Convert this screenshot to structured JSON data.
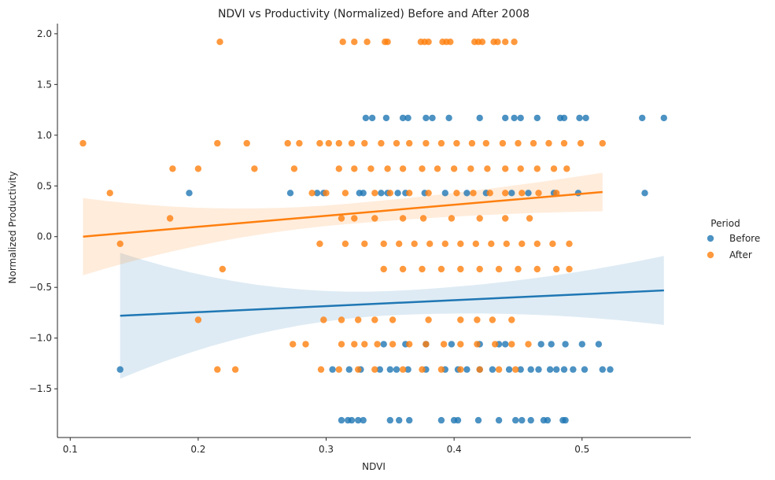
{
  "chart_data": {
    "type": "scatter",
    "title": "NDVI vs Productivity (Normalized) Before and After 2008",
    "xlabel": "NDVI",
    "ylabel": "Normalized Productivity",
    "xlim": [
      0.09,
      0.585
    ],
    "ylim": [
      -1.98,
      2.1
    ],
    "xticks": [
      0.1,
      0.2,
      0.3,
      0.4,
      0.5
    ],
    "xtick_labels": [
      "0.1",
      "0.2",
      "0.3",
      "0.4",
      "0.5"
    ],
    "yticks": [
      -1.5,
      -1.0,
      -0.5,
      0.0,
      0.5,
      1.0,
      1.5,
      2.0
    ],
    "ytick_labels": [
      "−1.5",
      "−1.0",
      "−0.5",
      "0.0",
      "0.5",
      "1.0",
      "1.5",
      "2.0"
    ],
    "grid": false,
    "legend": {
      "title": "Period",
      "placement": "right"
    },
    "series": [
      {
        "name": "Before",
        "color": "#1f77b4",
        "points": [
          [
            0.139,
            -1.31
          ],
          [
            0.193,
            0.43
          ],
          [
            0.272,
            0.43
          ],
          [
            0.293,
            0.43
          ],
          [
            0.298,
            0.43
          ],
          [
            0.326,
            0.43
          ],
          [
            0.329,
            0.43
          ],
          [
            0.343,
            0.43
          ],
          [
            0.348,
            0.43
          ],
          [
            0.356,
            0.43
          ],
          [
            0.362,
            0.43
          ],
          [
            0.377,
            0.43
          ],
          [
            0.393,
            0.43
          ],
          [
            0.41,
            0.43
          ],
          [
            0.425,
            0.43
          ],
          [
            0.445,
            0.43
          ],
          [
            0.458,
            0.43
          ],
          [
            0.478,
            0.43
          ],
          [
            0.497,
            0.43
          ],
          [
            0.549,
            0.43
          ],
          [
            0.331,
            1.17
          ],
          [
            0.336,
            1.17
          ],
          [
            0.347,
            1.17
          ],
          [
            0.36,
            1.17
          ],
          [
            0.364,
            1.17
          ],
          [
            0.378,
            1.17
          ],
          [
            0.383,
            1.17
          ],
          [
            0.396,
            1.17
          ],
          [
            0.42,
            1.17
          ],
          [
            0.44,
            1.17
          ],
          [
            0.447,
            1.17
          ],
          [
            0.452,
            1.17
          ],
          [
            0.465,
            1.17
          ],
          [
            0.483,
            1.17
          ],
          [
            0.486,
            1.17
          ],
          [
            0.498,
            1.17
          ],
          [
            0.503,
            1.17
          ],
          [
            0.547,
            1.17
          ],
          [
            0.564,
            1.17
          ],
          [
            0.345,
            -1.06
          ],
          [
            0.362,
            -1.06
          ],
          [
            0.378,
            -1.06
          ],
          [
            0.398,
            -1.06
          ],
          [
            0.42,
            -1.06
          ],
          [
            0.435,
            -1.06
          ],
          [
            0.44,
            -1.06
          ],
          [
            0.468,
            -1.06
          ],
          [
            0.476,
            -1.06
          ],
          [
            0.487,
            -1.06
          ],
          [
            0.5,
            -1.06
          ],
          [
            0.513,
            -1.06
          ],
          [
            0.305,
            -1.31
          ],
          [
            0.318,
            -1.31
          ],
          [
            0.327,
            -1.31
          ],
          [
            0.342,
            -1.31
          ],
          [
            0.35,
            -1.31
          ],
          [
            0.355,
            -1.31
          ],
          [
            0.364,
            -1.31
          ],
          [
            0.378,
            -1.31
          ],
          [
            0.393,
            -1.31
          ],
          [
            0.403,
            -1.31
          ],
          [
            0.41,
            -1.31
          ],
          [
            0.42,
            -1.31
          ],
          [
            0.43,
            -1.31
          ],
          [
            0.443,
            -1.31
          ],
          [
            0.452,
            -1.31
          ],
          [
            0.46,
            -1.31
          ],
          [
            0.466,
            -1.31
          ],
          [
            0.475,
            -1.31
          ],
          [
            0.48,
            -1.31
          ],
          [
            0.486,
            -1.31
          ],
          [
            0.493,
            -1.31
          ],
          [
            0.502,
            -1.31
          ],
          [
            0.516,
            -1.31
          ],
          [
            0.522,
            -1.31
          ],
          [
            0.312,
            -1.81
          ],
          [
            0.317,
            -1.81
          ],
          [
            0.32,
            -1.81
          ],
          [
            0.325,
            -1.81
          ],
          [
            0.329,
            -1.81
          ],
          [
            0.35,
            -1.81
          ],
          [
            0.357,
            -1.81
          ],
          [
            0.365,
            -1.81
          ],
          [
            0.39,
            -1.81
          ],
          [
            0.4,
            -1.81
          ],
          [
            0.403,
            -1.81
          ],
          [
            0.419,
            -1.81
          ],
          [
            0.435,
            -1.81
          ],
          [
            0.448,
            -1.81
          ],
          [
            0.453,
            -1.81
          ],
          [
            0.46,
            -1.81
          ],
          [
            0.47,
            -1.81
          ],
          [
            0.473,
            -1.81
          ],
          [
            0.485,
            -1.81
          ],
          [
            0.487,
            -1.81
          ]
        ],
        "trend": {
          "x": [
            0.139,
            0.564
          ],
          "y": [
            -0.78,
            -0.53
          ]
        }
      },
      {
        "name": "After",
        "color": "#ff7f0e",
        "points": [
          [
            0.217,
            1.92
          ],
          [
            0.313,
            1.92
          ],
          [
            0.322,
            1.92
          ],
          [
            0.332,
            1.92
          ],
          [
            0.346,
            1.92
          ],
          [
            0.348,
            1.92
          ],
          [
            0.374,
            1.92
          ],
          [
            0.377,
            1.92
          ],
          [
            0.38,
            1.92
          ],
          [
            0.391,
            1.92
          ],
          [
            0.394,
            1.92
          ],
          [
            0.397,
            1.92
          ],
          [
            0.416,
            1.92
          ],
          [
            0.419,
            1.92
          ],
          [
            0.422,
            1.92
          ],
          [
            0.431,
            1.92
          ],
          [
            0.434,
            1.92
          ],
          [
            0.44,
            1.92
          ],
          [
            0.447,
            1.92
          ],
          [
            0.11,
            0.92
          ],
          [
            0.215,
            0.92
          ],
          [
            0.238,
            0.92
          ],
          [
            0.27,
            0.92
          ],
          [
            0.279,
            0.92
          ],
          [
            0.295,
            0.92
          ],
          [
            0.302,
            0.92
          ],
          [
            0.31,
            0.92
          ],
          [
            0.32,
            0.92
          ],
          [
            0.33,
            0.92
          ],
          [
            0.343,
            0.92
          ],
          [
            0.355,
            0.92
          ],
          [
            0.365,
            0.92
          ],
          [
            0.378,
            0.92
          ],
          [
            0.39,
            0.92
          ],
          [
            0.402,
            0.92
          ],
          [
            0.414,
            0.92
          ],
          [
            0.425,
            0.92
          ],
          [
            0.438,
            0.92
          ],
          [
            0.45,
            0.92
          ],
          [
            0.462,
            0.92
          ],
          [
            0.474,
            0.92
          ],
          [
            0.486,
            0.92
          ],
          [
            0.499,
            0.92
          ],
          [
            0.516,
            0.92
          ],
          [
            0.18,
            0.67
          ],
          [
            0.2,
            0.67
          ],
          [
            0.244,
            0.67
          ],
          [
            0.275,
            0.67
          ],
          [
            0.31,
            0.67
          ],
          [
            0.322,
            0.67
          ],
          [
            0.335,
            0.67
          ],
          [
            0.348,
            0.67
          ],
          [
            0.36,
            0.67
          ],
          [
            0.375,
            0.67
          ],
          [
            0.387,
            0.67
          ],
          [
            0.4,
            0.67
          ],
          [
            0.413,
            0.67
          ],
          [
            0.426,
            0.67
          ],
          [
            0.44,
            0.67
          ],
          [
            0.452,
            0.67
          ],
          [
            0.465,
            0.67
          ],
          [
            0.478,
            0.67
          ],
          [
            0.488,
            0.67
          ],
          [
            0.131,
            0.43
          ],
          [
            0.289,
            0.43
          ],
          [
            0.3,
            0.43
          ],
          [
            0.315,
            0.43
          ],
          [
            0.338,
            0.43
          ],
          [
            0.35,
            0.43
          ],
          [
            0.365,
            0.43
          ],
          [
            0.38,
            0.43
          ],
          [
            0.402,
            0.43
          ],
          [
            0.415,
            0.43
          ],
          [
            0.428,
            0.43
          ],
          [
            0.44,
            0.43
          ],
          [
            0.453,
            0.43
          ],
          [
            0.466,
            0.43
          ],
          [
            0.48,
            0.43
          ],
          [
            0.312,
            0.18
          ],
          [
            0.322,
            0.18
          ],
          [
            0.338,
            0.18
          ],
          [
            0.36,
            0.18
          ],
          [
            0.376,
            0.18
          ],
          [
            0.398,
            0.18
          ],
          [
            0.42,
            0.18
          ],
          [
            0.44,
            0.18
          ],
          [
            0.459,
            0.18
          ],
          [
            0.178,
            0.18
          ],
          [
            0.139,
            -0.07
          ],
          [
            0.295,
            -0.07
          ],
          [
            0.315,
            -0.07
          ],
          [
            0.33,
            -0.07
          ],
          [
            0.345,
            -0.07
          ],
          [
            0.357,
            -0.07
          ],
          [
            0.369,
            -0.07
          ],
          [
            0.381,
            -0.07
          ],
          [
            0.393,
            -0.07
          ],
          [
            0.405,
            -0.07
          ],
          [
            0.417,
            -0.07
          ],
          [
            0.429,
            -0.07
          ],
          [
            0.441,
            -0.07
          ],
          [
            0.453,
            -0.07
          ],
          [
            0.465,
            -0.07
          ],
          [
            0.477,
            -0.07
          ],
          [
            0.49,
            -0.07
          ],
          [
            0.219,
            -0.32
          ],
          [
            0.345,
            -0.32
          ],
          [
            0.36,
            -0.32
          ],
          [
            0.375,
            -0.32
          ],
          [
            0.39,
            -0.32
          ],
          [
            0.405,
            -0.32
          ],
          [
            0.42,
            -0.32
          ],
          [
            0.435,
            -0.32
          ],
          [
            0.45,
            -0.32
          ],
          [
            0.465,
            -0.32
          ],
          [
            0.48,
            -0.32
          ],
          [
            0.49,
            -0.32
          ],
          [
            0.2,
            -0.82
          ],
          [
            0.298,
            -0.82
          ],
          [
            0.312,
            -0.82
          ],
          [
            0.325,
            -0.82
          ],
          [
            0.338,
            -0.82
          ],
          [
            0.352,
            -0.82
          ],
          [
            0.38,
            -0.82
          ],
          [
            0.405,
            -0.82
          ],
          [
            0.418,
            -0.82
          ],
          [
            0.43,
            -0.82
          ],
          [
            0.445,
            -0.82
          ],
          [
            0.274,
            -1.06
          ],
          [
            0.284,
            -1.06
          ],
          [
            0.312,
            -1.06
          ],
          [
            0.322,
            -1.06
          ],
          [
            0.33,
            -1.06
          ],
          [
            0.34,
            -1.06
          ],
          [
            0.352,
            -1.06
          ],
          [
            0.365,
            -1.06
          ],
          [
            0.378,
            -1.06
          ],
          [
            0.392,
            -1.06
          ],
          [
            0.405,
            -1.06
          ],
          [
            0.418,
            -1.06
          ],
          [
            0.432,
            -1.06
          ],
          [
            0.445,
            -1.06
          ],
          [
            0.458,
            -1.06
          ],
          [
            0.215,
            -1.31
          ],
          [
            0.229,
            -1.31
          ],
          [
            0.296,
            -1.31
          ],
          [
            0.31,
            -1.31
          ],
          [
            0.325,
            -1.31
          ],
          [
            0.338,
            -1.31
          ],
          [
            0.36,
            -1.31
          ],
          [
            0.375,
            -1.31
          ],
          [
            0.39,
            -1.31
          ],
          [
            0.405,
            -1.31
          ],
          [
            0.42,
            -1.31
          ],
          [
            0.435,
            -1.31
          ],
          [
            0.448,
            -1.31
          ]
        ],
        "trend": {
          "x": [
            0.11,
            0.516
          ],
          "y": [
            0.0,
            0.44
          ]
        }
      }
    ]
  }
}
